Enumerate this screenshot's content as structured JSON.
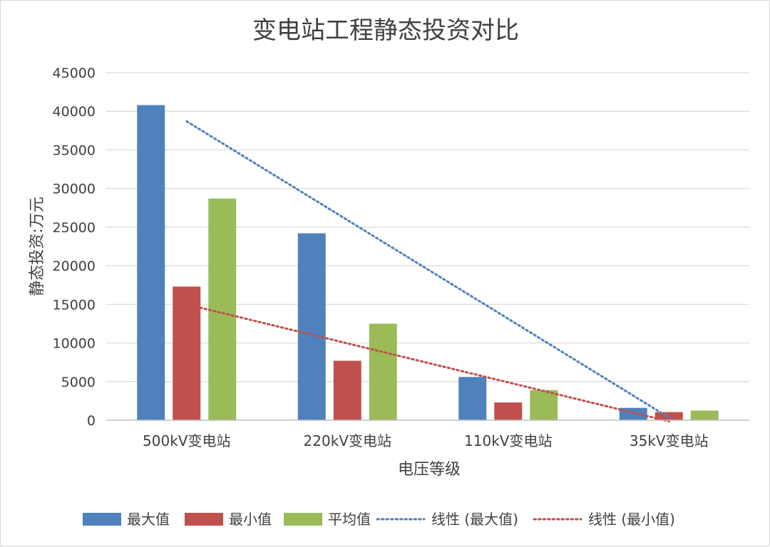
{
  "chart_data": {
    "type": "bar",
    "title": "变电站工程静态投资对比",
    "xlabel": "电压等级",
    "ylabel": "静态投资:万元",
    "ylim": [
      0,
      45000
    ],
    "yticks": [
      0,
      5000,
      10000,
      15000,
      20000,
      25000,
      30000,
      35000,
      40000,
      45000
    ],
    "grid": true,
    "legend_position": "bottom",
    "categories": [
      "500kV变电站",
      "220kV变电站",
      "110kV变电站",
      "35kV变电站"
    ],
    "series": [
      {
        "name": "最大值",
        "color": "#4F81BD",
        "values": [
          40800,
          24200,
          5600,
          1600
        ]
      },
      {
        "name": "最小值",
        "color": "#C0504D",
        "values": [
          17300,
          7700,
          2300,
          1050
        ]
      },
      {
        "name": "平均值",
        "color": "#9BBB59",
        "values": [
          28700,
          12500,
          3900,
          1250
        ]
      }
    ],
    "trendlines": [
      {
        "name": "线性 (最大值)",
        "color": "#4F81BD",
        "style": "dotted",
        "start": 38700,
        "end": 350
      },
      {
        "name": "线性 (最小值)",
        "color": "#C0504D",
        "style": "dotted",
        "start": 15000,
        "end": -150
      }
    ]
  }
}
